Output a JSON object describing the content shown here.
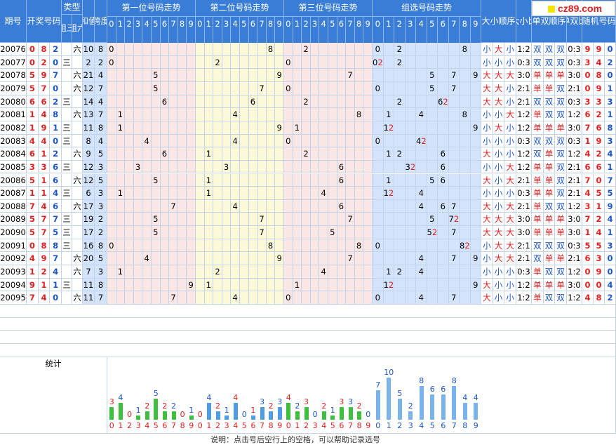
{
  "logo": {
    "text": "cz89.com"
  },
  "headers": {
    "period": "期号",
    "draw": "开奖号码",
    "type": "类型",
    "type_sub": [
      "组三",
      "组六"
    ],
    "sum": "和值",
    "span": "跨度",
    "pos1": "第一位号码走势",
    "pos2": "第二位号码走势",
    "pos3": "第三位号码走势",
    "combo": "组选号码走势",
    "size_order": "大小顺序",
    "size_ratio": "大小比",
    "parity_order": "单双顺序",
    "parity_ratio": "单双比",
    "random": "随机号码",
    "stats": "统计",
    "digits": [
      "0",
      "1",
      "2",
      "3",
      "4",
      "5",
      "6",
      "7",
      "8",
      "9"
    ]
  },
  "rows": [
    {
      "p": "20076",
      "n": [
        0,
        8,
        2
      ],
      "t": "六",
      "s": 10,
      "k": 8,
      "sz": [
        "小",
        "大",
        "小"
      ],
      "szr": "1:2",
      "pr": [
        "双",
        "双",
        "双"
      ],
      "prr": "0:3",
      "r": [
        9,
        9,
        0
      ]
    },
    {
      "p": "20077",
      "n": [
        0,
        2,
        0
      ],
      "t": "三",
      "s": 2,
      "k": 2,
      "sz": [
        "小",
        "小",
        "小"
      ],
      "szr": "0:3",
      "pr": [
        "双",
        "双",
        "双"
      ],
      "prr": "0:3",
      "r": [
        3,
        4,
        2
      ]
    },
    {
      "p": "20078",
      "n": [
        5,
        9,
        7
      ],
      "t": "六",
      "s": 21,
      "k": 4,
      "sz": [
        "大",
        "大",
        "大"
      ],
      "szr": "3:0",
      "pr": [
        "单",
        "单",
        "单"
      ],
      "prr": "3:0",
      "r": [
        0,
        8,
        0
      ]
    },
    {
      "p": "20079",
      "n": [
        5,
        7,
        0
      ],
      "t": "六",
      "s": 12,
      "k": 7,
      "sz": [
        "大",
        "大",
        "小"
      ],
      "szr": "2:1",
      "pr": [
        "单",
        "单",
        "双"
      ],
      "prr": "2:1",
      "r": [
        0,
        9,
        1
      ]
    },
    {
      "p": "20080",
      "n": [
        6,
        6,
        2
      ],
      "t": "三",
      "s": 14,
      "k": 4,
      "sz": [
        "大",
        "大",
        "小"
      ],
      "szr": "2:1",
      "pr": [
        "双",
        "双",
        "双"
      ],
      "prr": "0:3",
      "r": [
        3,
        3,
        3
      ]
    },
    {
      "p": "20081",
      "n": [
        1,
        4,
        8
      ],
      "t": "六",
      "s": 13,
      "k": 7,
      "sz": [
        "小",
        "小",
        "大"
      ],
      "szr": "1:2",
      "pr": [
        "单",
        "双",
        "双"
      ],
      "prr": "1:2",
      "r": [
        6,
        2,
        1
      ]
    },
    {
      "p": "20082",
      "n": [
        1,
        9,
        1
      ],
      "t": "三",
      "s": 11,
      "k": 8,
      "sz": [
        "小",
        "大",
        "小"
      ],
      "szr": "1:2",
      "pr": [
        "单",
        "单",
        "单"
      ],
      "prr": "3:0",
      "r": [
        7,
        6,
        8
      ]
    },
    {
      "p": "20083",
      "n": [
        4,
        4,
        0
      ],
      "t": "三",
      "s": 8,
      "k": 4,
      "sz": [
        "小",
        "小",
        "小"
      ],
      "szr": "0:3",
      "pr": [
        "双",
        "双",
        "双"
      ],
      "prr": "0:3",
      "r": [
        1,
        9,
        3
      ]
    },
    {
      "p": "20084",
      "n": [
        6,
        1,
        2
      ],
      "t": "六",
      "s": 9,
      "k": 5,
      "sz": [
        "大",
        "小",
        "小"
      ],
      "szr": "1:2",
      "pr": [
        "双",
        "单",
        "双"
      ],
      "prr": "1:2",
      "r": [
        4,
        2,
        4
      ]
    },
    {
      "p": "20085",
      "n": [
        3,
        3,
        6
      ],
      "t": "三",
      "s": 12,
      "k": 3,
      "sz": [
        "小",
        "小",
        "大"
      ],
      "szr": "1:2",
      "pr": [
        "单",
        "单",
        "双"
      ],
      "prr": "2:1",
      "r": [
        6,
        6,
        1
      ]
    },
    {
      "p": "20086",
      "n": [
        5,
        1,
        6
      ],
      "t": "六",
      "s": 12,
      "k": 5,
      "sz": [
        "大",
        "小",
        "大"
      ],
      "szr": "2:1",
      "pr": [
        "单",
        "单",
        "双"
      ],
      "prr": "2:1",
      "r": [
        7,
        0,
        7
      ]
    },
    {
      "p": "20087",
      "n": [
        1,
        1,
        4
      ],
      "t": "三",
      "s": 6,
      "k": 3,
      "sz": [
        "小",
        "小",
        "小"
      ],
      "szr": "0:3",
      "pr": [
        "单",
        "单",
        "双"
      ],
      "prr": "2:1",
      "r": [
        4,
        5,
        5
      ]
    },
    {
      "p": "20088",
      "n": [
        7,
        4,
        6
      ],
      "t": "六",
      "s": 17,
      "k": 3,
      "sz": [
        "大",
        "小",
        "大"
      ],
      "szr": "2:1",
      "pr": [
        "单",
        "双",
        "双"
      ],
      "prr": "1:2",
      "r": [
        3,
        1,
        9
      ]
    },
    {
      "p": "20089",
      "n": [
        5,
        7,
        7
      ],
      "t": "三",
      "s": 19,
      "k": 2,
      "sz": [
        "大",
        "大",
        "大"
      ],
      "szr": "3:0",
      "pr": [
        "单",
        "单",
        "单"
      ],
      "prr": "3:0",
      "r": [
        7,
        2,
        4
      ]
    },
    {
      "p": "20090",
      "n": [
        5,
        7,
        5
      ],
      "t": "三",
      "s": 17,
      "k": 2,
      "sz": [
        "大",
        "大",
        "大"
      ],
      "szr": "3:0",
      "pr": [
        "单",
        "单",
        "单"
      ],
      "prr": "3:0",
      "r": [
        1,
        4,
        1
      ]
    },
    {
      "p": "20091",
      "n": [
        0,
        8,
        8
      ],
      "t": "三",
      "s": 16,
      "k": 8,
      "sz": [
        "小",
        "大",
        "大"
      ],
      "szr": "2:1",
      "pr": [
        "双",
        "双",
        "双"
      ],
      "prr": "0:3",
      "r": [
        5,
        5,
        3
      ]
    },
    {
      "p": "20092",
      "n": [
        4,
        9,
        7
      ],
      "t": "六",
      "s": 20,
      "k": 5,
      "sz": [
        "小",
        "大",
        "大"
      ],
      "szr": "2:1",
      "pr": [
        "双",
        "单",
        "单"
      ],
      "prr": "2:1",
      "r": [
        6,
        3,
        0
      ]
    },
    {
      "p": "20093",
      "n": [
        1,
        2,
        4
      ],
      "t": "六",
      "s": 7,
      "k": 3,
      "sz": [
        "小",
        "小",
        "小"
      ],
      "szr": "0:3",
      "pr": [
        "单",
        "双",
        "双"
      ],
      "prr": "1:2",
      "r": [
        0,
        9,
        0
      ]
    },
    {
      "p": "20094",
      "n": [
        9,
        1,
        1
      ],
      "t": "三",
      "s": 11,
      "k": 8,
      "sz": [
        "大",
        "小",
        "小"
      ],
      "szr": "1:2",
      "pr": [
        "单",
        "单",
        "单"
      ],
      "prr": "3:0",
      "r": [
        0,
        0,
        4
      ]
    },
    {
      "p": "20095",
      "n": [
        7,
        4,
        0
      ],
      "t": "六",
      "s": 11,
      "k": 7,
      "sz": [
        "大",
        "小",
        "小"
      ],
      "szr": "1:2",
      "pr": [
        "单",
        "双",
        "双"
      ],
      "prr": "1:2",
      "r": [
        4,
        8,
        2
      ]
    }
  ],
  "stats": {
    "pos1": [
      3,
      4,
      0,
      1,
      2,
      5,
      2,
      2,
      0,
      1
    ],
    "pos2": [
      0,
      4,
      2,
      1,
      4,
      0,
      1,
      3,
      2,
      3
    ],
    "pos3": [
      4,
      2,
      3,
      0,
      2,
      1,
      3,
      3,
      2,
      0
    ],
    "combo": [
      7,
      10,
      5,
      2,
      8,
      6,
      6,
      8,
      4,
      4
    ]
  },
  "footer": "说明：点击号后空行上的空格，可以帮助记录选号"
}
